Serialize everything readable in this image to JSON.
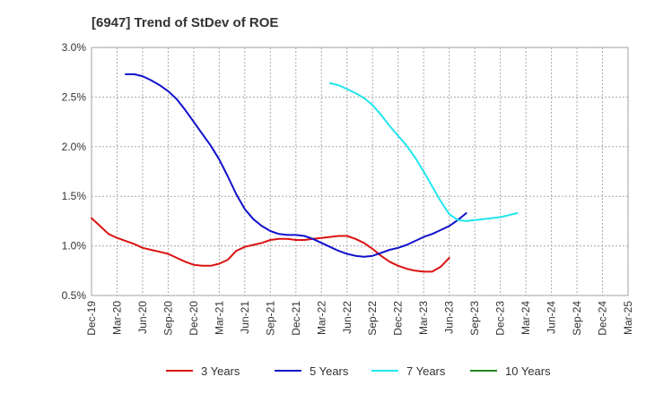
{
  "chart_data": {
    "type": "line",
    "title": "[6947]  Trend of StDev of ROE",
    "xlabel": "",
    "ylabel": "",
    "x_ticks": [
      "Dec-19",
      "Mar-20",
      "Jun-20",
      "Sep-20",
      "Dec-20",
      "Mar-21",
      "Jun-21",
      "Sep-21",
      "Dec-21",
      "Mar-22",
      "Jun-22",
      "Sep-22",
      "Dec-22",
      "Mar-23",
      "Jun-23",
      "Sep-23",
      "Dec-23",
      "Mar-24",
      "Jun-24",
      "Sep-24",
      "Dec-24",
      "Mar-25"
    ],
    "y_ticks": [
      "0.5%",
      "1.0%",
      "1.5%",
      "2.0%",
      "2.5%",
      "3.0%"
    ],
    "ylim": [
      0.5,
      3.0
    ],
    "grid": true,
    "legend_position": "bottom",
    "series": [
      {
        "name": "3 Years",
        "color": "#dd1111",
        "points": [
          [
            0,
            1.28
          ],
          [
            1,
            1.2
          ],
          [
            2,
            1.12
          ],
          [
            3,
            1.08
          ],
          [
            4,
            1.05
          ],
          [
            5,
            1.02
          ],
          [
            6,
            0.98
          ],
          [
            7,
            0.96
          ],
          [
            8,
            0.94
          ],
          [
            9,
            0.92
          ],
          [
            10,
            0.88
          ],
          [
            11,
            0.84
          ],
          [
            12,
            0.81
          ],
          [
            13,
            0.8
          ],
          [
            14,
            0.8
          ],
          [
            15,
            0.82
          ],
          [
            16,
            0.86
          ],
          [
            17,
            0.95
          ],
          [
            18,
            0.99
          ],
          [
            19,
            1.01
          ],
          [
            20,
            1.03
          ],
          [
            21,
            1.06
          ],
          [
            22,
            1.07
          ],
          [
            23,
            1.07
          ],
          [
            24,
            1.06
          ],
          [
            25,
            1.06
          ],
          [
            26,
            1.07
          ],
          [
            27,
            1.08
          ],
          [
            28,
            1.09
          ],
          [
            29,
            1.1
          ],
          [
            30,
            1.1
          ],
          [
            31,
            1.07
          ],
          [
            32,
            1.03
          ],
          [
            33,
            0.97
          ],
          [
            34,
            0.9
          ],
          [
            35,
            0.84
          ],
          [
            36,
            0.8
          ],
          [
            37,
            0.77
          ],
          [
            38,
            0.75
          ],
          [
            39,
            0.74
          ],
          [
            40,
            0.74
          ],
          [
            41,
            0.79
          ],
          [
            42,
            0.88
          ]
        ]
      },
      {
        "name": "5 Years",
        "color": "#1111cc",
        "points": [
          [
            4,
            2.73
          ],
          [
            5,
            2.73
          ],
          [
            6,
            2.71
          ],
          [
            7,
            2.67
          ],
          [
            8,
            2.62
          ],
          [
            9,
            2.56
          ],
          [
            10,
            2.48
          ],
          [
            11,
            2.37
          ],
          [
            12,
            2.25
          ],
          [
            13,
            2.13
          ],
          [
            14,
            2.01
          ],
          [
            15,
            1.87
          ],
          [
            16,
            1.7
          ],
          [
            17,
            1.52
          ],
          [
            18,
            1.37
          ],
          [
            19,
            1.27
          ],
          [
            20,
            1.2
          ],
          [
            21,
            1.15
          ],
          [
            22,
            1.12
          ],
          [
            23,
            1.11
          ],
          [
            24,
            1.11
          ],
          [
            25,
            1.1
          ],
          [
            26,
            1.07
          ],
          [
            27,
            1.03
          ],
          [
            28,
            0.99
          ],
          [
            29,
            0.95
          ],
          [
            30,
            0.92
          ],
          [
            31,
            0.9
          ],
          [
            32,
            0.89
          ],
          [
            33,
            0.9
          ],
          [
            34,
            0.93
          ],
          [
            35,
            0.96
          ],
          [
            36,
            0.98
          ],
          [
            37,
            1.01
          ],
          [
            38,
            1.05
          ],
          [
            39,
            1.09
          ],
          [
            40,
            1.12
          ],
          [
            41,
            1.16
          ],
          [
            42,
            1.2
          ],
          [
            43,
            1.26
          ],
          [
            44,
            1.33
          ]
        ]
      },
      {
        "name": "7 Years",
        "color": "#22e5ee",
        "points": [
          [
            28,
            2.64
          ],
          [
            29,
            2.62
          ],
          [
            30,
            2.58
          ],
          [
            31,
            2.54
          ],
          [
            32,
            2.49
          ],
          [
            33,
            2.42
          ],
          [
            34,
            2.32
          ],
          [
            35,
            2.21
          ],
          [
            36,
            2.11
          ],
          [
            37,
            2.01
          ],
          [
            38,
            1.89
          ],
          [
            39,
            1.75
          ],
          [
            40,
            1.6
          ],
          [
            41,
            1.45
          ],
          [
            42,
            1.32
          ],
          [
            43,
            1.26
          ],
          [
            44,
            1.25
          ],
          [
            45,
            1.26
          ],
          [
            46,
            1.27
          ],
          [
            47,
            1.28
          ],
          [
            48,
            1.29
          ],
          [
            49,
            1.31
          ],
          [
            50,
            1.33
          ]
        ]
      },
      {
        "name": "10 Years",
        "color": "#228822",
        "points": []
      }
    ]
  }
}
